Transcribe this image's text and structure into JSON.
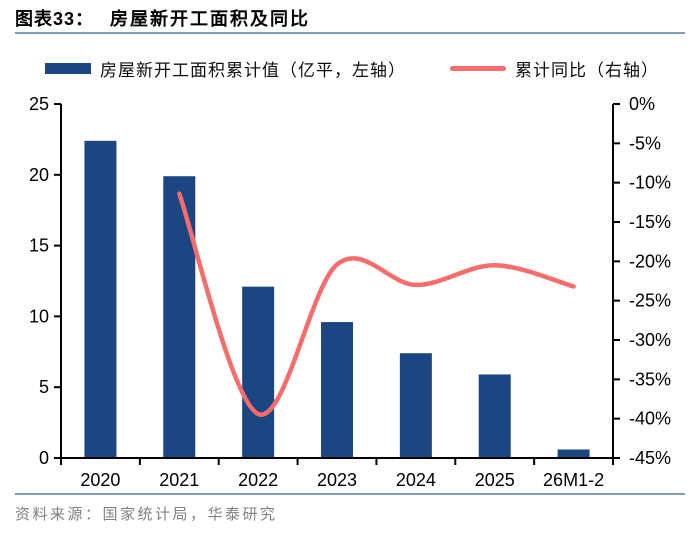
{
  "header": {
    "figure_label": "图表33：",
    "title": "房屋新开工面积及同比"
  },
  "legend": {
    "bar_label": "房屋新开工面积累计值（亿平，左轴）",
    "line_label": "累计同比（右轴）"
  },
  "footer": {
    "source": "资料来源：国家统计局，华泰研究"
  },
  "colors": {
    "bar": "#1B4682",
    "line": "#F96C6C",
    "rule": "#7E9DBB",
    "axis": "#000000",
    "source_text": "#808080"
  },
  "chart_data": {
    "type": "bar+line",
    "title": "房屋新开工面积及同比",
    "categories": [
      "2020",
      "2021",
      "2022",
      "2023",
      "2024",
      "2025",
      "26M1-2"
    ],
    "series": [
      {
        "name": "房屋新开工面积累计值（亿平，左轴）",
        "type": "bar",
        "axis": "left",
        "color": "#1B4682",
        "values": [
          22.4,
          19.9,
          12.1,
          9.6,
          7.4,
          5.9,
          0.6
        ]
      },
      {
        "name": "累计同比（右轴）",
        "type": "line",
        "axis": "right",
        "color": "#F96C6C",
        "values": [
          null,
          -11.4,
          -39.4,
          -20.4,
          -23.0,
          -20.5,
          -23.2
        ]
      }
    ],
    "left_axis": {
      "min": 0,
      "max": 25,
      "step": 5,
      "ticks": [
        "0",
        "5",
        "10",
        "15",
        "20",
        "25"
      ]
    },
    "right_axis": {
      "min": -45,
      "max": 0,
      "step": 5,
      "ticks": [
        "0%",
        "-5%",
        "-10%",
        "-15%",
        "-20%",
        "-25%",
        "-30%",
        "-35%",
        "-40%",
        "-45%"
      ]
    },
    "grid": false,
    "legend_position": "top"
  }
}
